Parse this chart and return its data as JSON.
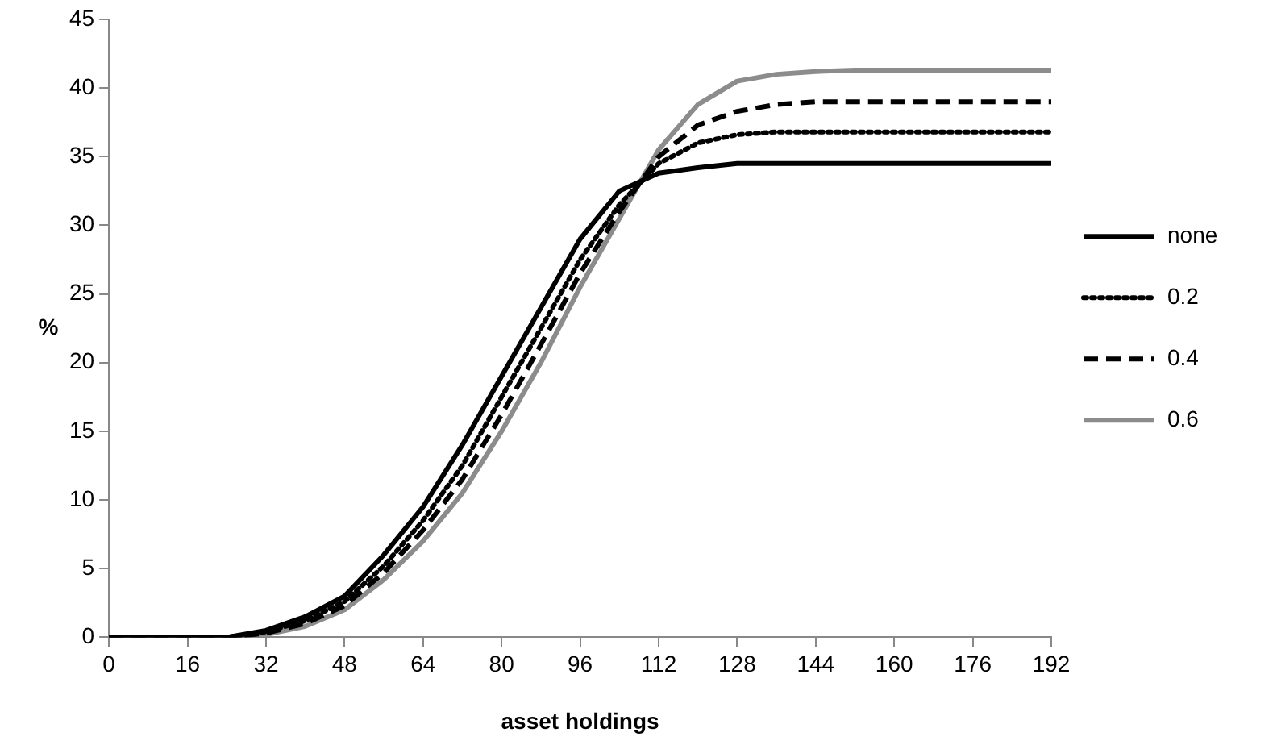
{
  "chart_data": {
    "type": "line",
    "xlabel": "asset holdings",
    "ylabel": "%",
    "x": [
      0,
      8,
      16,
      24,
      32,
      40,
      48,
      56,
      64,
      72,
      80,
      88,
      96,
      104,
      112,
      120,
      128,
      136,
      144,
      152,
      160,
      168,
      176,
      184,
      192
    ],
    "xlim": [
      0,
      192
    ],
    "xticks": [
      0,
      16,
      32,
      48,
      64,
      80,
      96,
      112,
      128,
      144,
      160,
      176,
      192
    ],
    "ylim": [
      0,
      45
    ],
    "yticks": [
      0,
      5,
      10,
      15,
      20,
      25,
      30,
      35,
      40,
      45
    ],
    "grid": false,
    "legend": "right",
    "marker": "none",
    "series": [
      {
        "name": "none",
        "color": "#000000",
        "line_style": "solid",
        "values": [
          0,
          0,
          0,
          0,
          0.5,
          1.5,
          3,
          6,
          9.5,
          14,
          19,
          24,
          29,
          32.5,
          33.8,
          34.2,
          34.5,
          34.5,
          34.5,
          34.5,
          34.5,
          34.5,
          34.5,
          34.5,
          34.5
        ]
      },
      {
        "name": "0.2",
        "color": "#000000",
        "line_style": "dotted",
        "values": [
          0,
          0,
          0,
          0,
          0.4,
          1.2,
          2.6,
          5.2,
          8.5,
          12.5,
          17.5,
          22.5,
          27.5,
          31.5,
          34.5,
          36,
          36.6,
          36.8,
          36.8,
          36.8,
          36.8,
          36.8,
          36.8,
          36.8,
          36.8
        ]
      },
      {
        "name": "0.4",
        "color": "#000000",
        "line_style": "dashed",
        "values": [
          0,
          0,
          0,
          0,
          0.3,
          1,
          2.3,
          4.7,
          7.8,
          11.5,
          16.2,
          21.3,
          26.5,
          31,
          35,
          37.3,
          38.3,
          38.8,
          39,
          39,
          39,
          39,
          39,
          39,
          39
        ]
      },
      {
        "name": "0.6",
        "color": "#8c8c8c",
        "line_style": "solid",
        "values": [
          0,
          0,
          0,
          0,
          0.2,
          0.8,
          2,
          4.2,
          7,
          10.5,
          15,
          20,
          25.5,
          30.5,
          35.5,
          38.8,
          40.5,
          41,
          41.2,
          41.3,
          41.3,
          41.3,
          41.3,
          41.3,
          41.3
        ]
      }
    ]
  }
}
